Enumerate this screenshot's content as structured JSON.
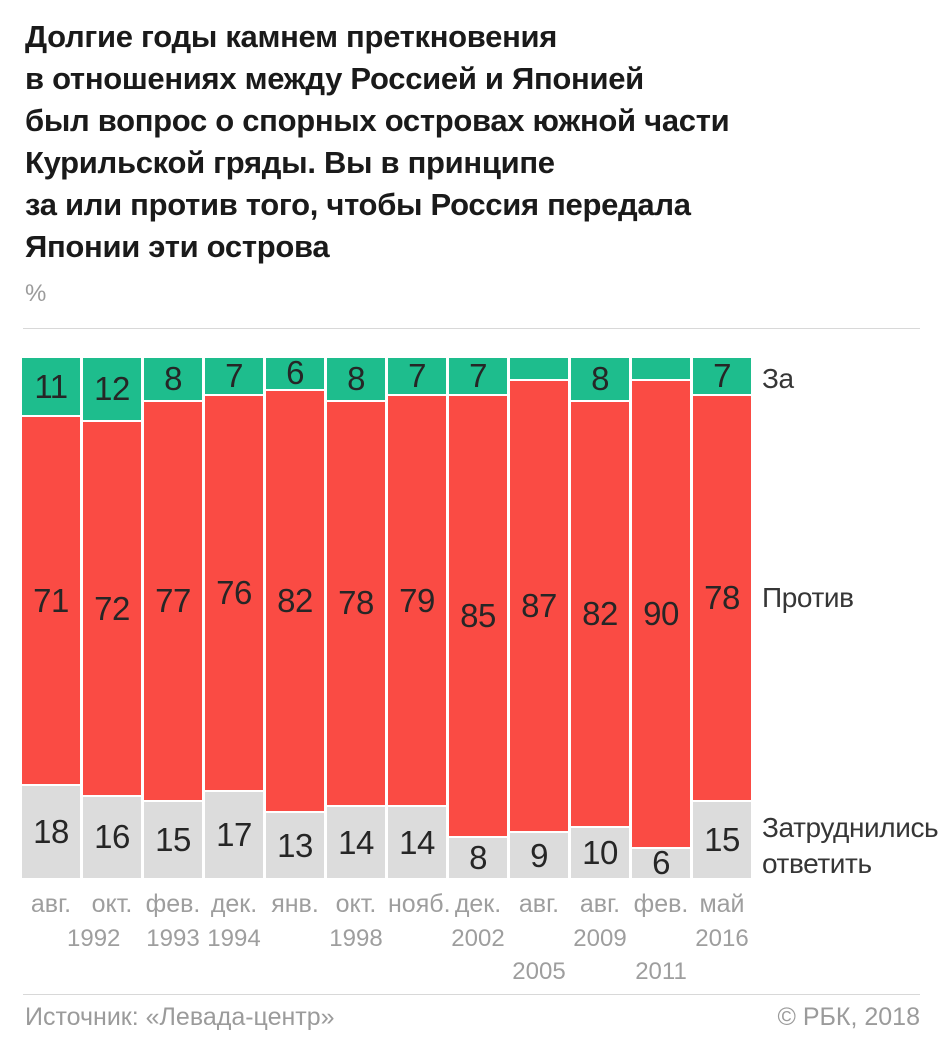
{
  "page": {
    "title": "Долгие годы камнем преткновения\nв отношениях между Россией и Японией\nбыл вопрос о спорных островах южной части\nКурильской гряды. Вы в принципе\nза или против того, чтобы Россия передала\nЯпонии эти острова",
    "unit_label": "%",
    "source": "Источник: «Левада-центр»",
    "copyright": "© РБК, 2018"
  },
  "colors": {
    "green": "#1EBD8D",
    "red": "#FA4B44",
    "gray": "#DCDCDC",
    "title_text": "#1A1A1A",
    "value_text": "#262626",
    "axis_text": "#9E9E9E",
    "muted_text": "#9B9B9B",
    "divider": "#D8D8D8"
  },
  "chart_data": {
    "type": "bar",
    "variant": "100-percent-stacked-column",
    "title": "Долгие годы камнем преткновения в отношениях между Россией и Японией был вопрос о спорных островах южной части Курильской гряды. Вы в принципе за или против того, чтобы Россия передала Японии эти острова",
    "unit": "%",
    "ylabel": "%",
    "legend_position": "right",
    "grid": false,
    "series": [
      {
        "name": "За",
        "color": "#1EBD8D",
        "values": [
          11,
          12,
          8,
          7,
          6,
          8,
          7,
          7,
          4,
          8,
          4,
          7
        ],
        "value_labels": [
          "11",
          "12",
          "8",
          "7",
          "6",
          "8",
          "7",
          "7",
          "",
          "8",
          "",
          "7"
        ]
      },
      {
        "name": "Против",
        "color": "#FA4B44",
        "values": [
          71,
          72,
          77,
          76,
          82,
          78,
          79,
          85,
          87,
          82,
          90,
          78
        ],
        "value_labels": [
          "71",
          "72",
          "77",
          "76",
          "82",
          "78",
          "79",
          "85",
          "87",
          "82",
          "90",
          "78"
        ]
      },
      {
        "name": "Затруднились ответить",
        "color": "#DCDCDC",
        "values": [
          18,
          16,
          15,
          17,
          13,
          14,
          14,
          8,
          9,
          10,
          6,
          15
        ],
        "value_labels": [
          "18",
          "16",
          "15",
          "17",
          "13",
          "14",
          "14",
          "8",
          "9",
          "10",
          "6",
          "15"
        ]
      }
    ],
    "x_axis": {
      "months": [
        "авг.",
        "окт.",
        "фев.",
        "дек.",
        "янв.",
        "окт.",
        "нояб.",
        "дек.",
        "авг.",
        "авг.",
        "фев.",
        "май"
      ],
      "year_ticks": [
        {
          "text": "1992",
          "col": 0.7,
          "row": 1
        },
        {
          "text": "1993",
          "col": 2,
          "row": 1
        },
        {
          "text": "1994",
          "col": 3,
          "row": 1
        },
        {
          "text": "1998",
          "col": 5,
          "row": 1
        },
        {
          "text": "2002",
          "col": 7,
          "row": 1
        },
        {
          "text": "2005",
          "col": 8,
          "row": 2
        },
        {
          "text": "2009",
          "col": 9,
          "row": 1
        },
        {
          "text": "2011",
          "col": 10,
          "row": 2
        },
        {
          "text": "2016",
          "col": 11,
          "row": 1
        }
      ]
    }
  }
}
